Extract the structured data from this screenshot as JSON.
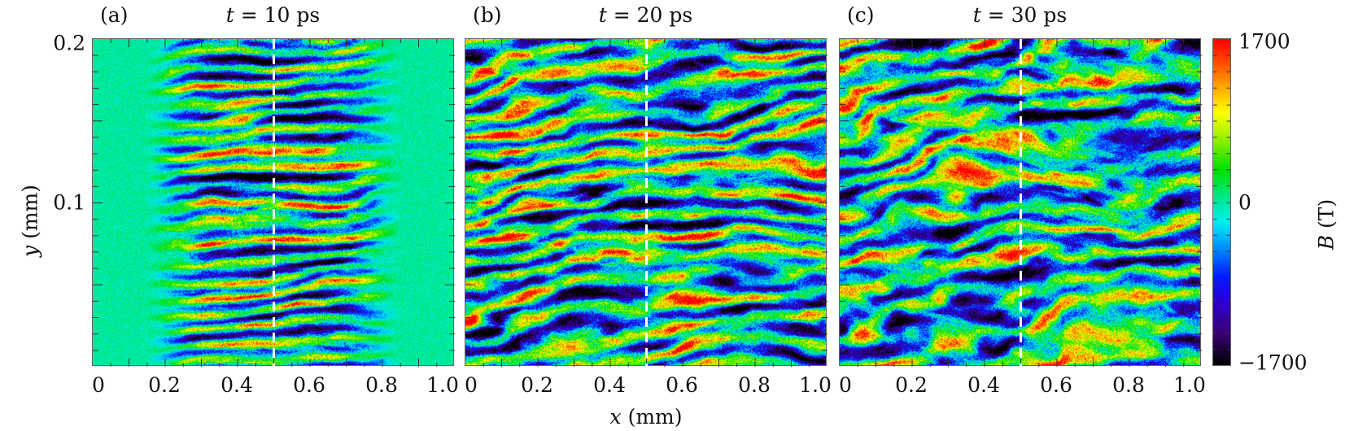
{
  "chart_data": [
    {
      "type": "heatmap",
      "panel_label": "(a)",
      "title_var": "t",
      "title_eq": " = 10 ps",
      "xlabel_var": "x",
      "xlabel_unit": " (mm)",
      "ylabel_var": "y",
      "ylabel_unit": " (mm)",
      "xlim": [
        0,
        1.0
      ],
      "ylim": [
        0,
        0.2
      ],
      "xticks": [
        "0",
        "0.2",
        "0.4",
        "0.6",
        "0.8",
        "1.0"
      ],
      "yticks": [
        {
          "v": 0.2,
          "label": "0.2"
        },
        {
          "v": 0.1,
          "label": "0.1"
        }
      ],
      "dashed_line_x": 0.5,
      "pattern": "filamentation confined to 0.15–0.85 mm"
    },
    {
      "type": "heatmap",
      "panel_label": "(b)",
      "title_var": "t",
      "title_eq": " = 20 ps",
      "xlim": [
        0,
        1.0
      ],
      "ylim": [
        0,
        0.2
      ],
      "xticks": [
        "0",
        "0.2",
        "0.4",
        "0.6",
        "0.8",
        "1.0"
      ],
      "dashed_line_x": 0.5,
      "pattern": "filamentation filling full domain"
    },
    {
      "type": "heatmap",
      "panel_label": "(c)",
      "title_var": "t",
      "title_eq": " = 30 ps",
      "xlim": [
        0,
        1.0
      ],
      "ylim": [
        0,
        0.2
      ],
      "xticks": [
        "0",
        "0.2",
        "0.4",
        "0.6",
        "0.8",
        "1.0"
      ],
      "dashed_line_x": 0.5,
      "pattern": "turbulent filaments filling full domain"
    }
  ],
  "axes": {
    "xlabel_var": "x",
    "xlabel_unit": " (mm)",
    "ylabel_var": "y",
    "ylabel_unit": " (mm)"
  },
  "colorbar": {
    "label_var": "B",
    "label_unit": " (T)",
    "zlim": [
      -1700,
      1700
    ],
    "ticks": [
      {
        "v": 1700,
        "label": "1700"
      },
      {
        "v": 0,
        "label": "0"
      },
      {
        "v": -1700,
        "label": "−1700"
      }
    ],
    "colormap": [
      "#000000",
      "#3c0078",
      "#2a00d8",
      "#0020ff",
      "#0090ff",
      "#00f0f0",
      "#00e8a0",
      "#00e000",
      "#a0f000",
      "#ffff00",
      "#ffa000",
      "#ff4000",
      "#ff0000"
    ]
  }
}
